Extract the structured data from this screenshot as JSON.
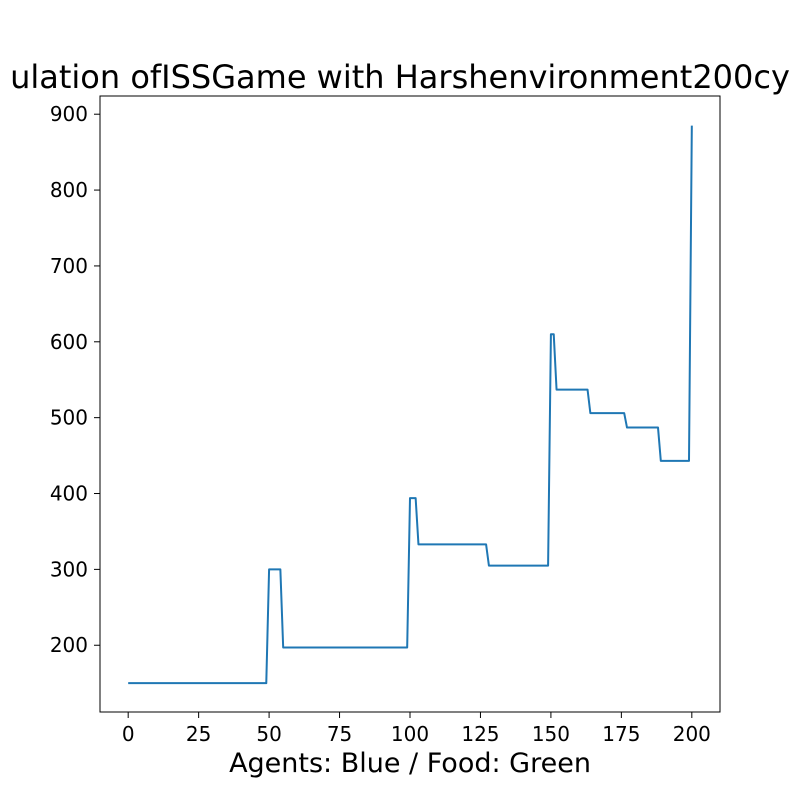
{
  "chart_data": {
    "type": "line",
    "title": "ulation ofISSGame with Harshenvironment200cy",
    "xlabel": "Agents: Blue / Food: Green",
    "ylabel": "",
    "xlim": [
      -10,
      210
    ],
    "ylim": [
      112,
      924
    ],
    "grid": false,
    "x_ticks": [
      0,
      25,
      50,
      75,
      100,
      125,
      150,
      175,
      200
    ],
    "y_ticks": [
      200,
      300,
      400,
      500,
      600,
      700,
      800,
      900
    ],
    "series": [
      {
        "color": "#1f77b4",
        "x": [
          0,
          49,
          50,
          54,
          55,
          99,
          100,
          102,
          103,
          127,
          128,
          149,
          150,
          151,
          152,
          163,
          164,
          176,
          177,
          188,
          189,
          199,
          200
        ],
        "y": [
          150,
          150,
          300,
          300,
          197,
          197,
          394,
          394,
          333,
          333,
          305,
          305,
          610,
          610,
          537,
          537,
          506,
          506,
          487,
          487,
          443,
          443,
          885
        ]
      }
    ]
  }
}
